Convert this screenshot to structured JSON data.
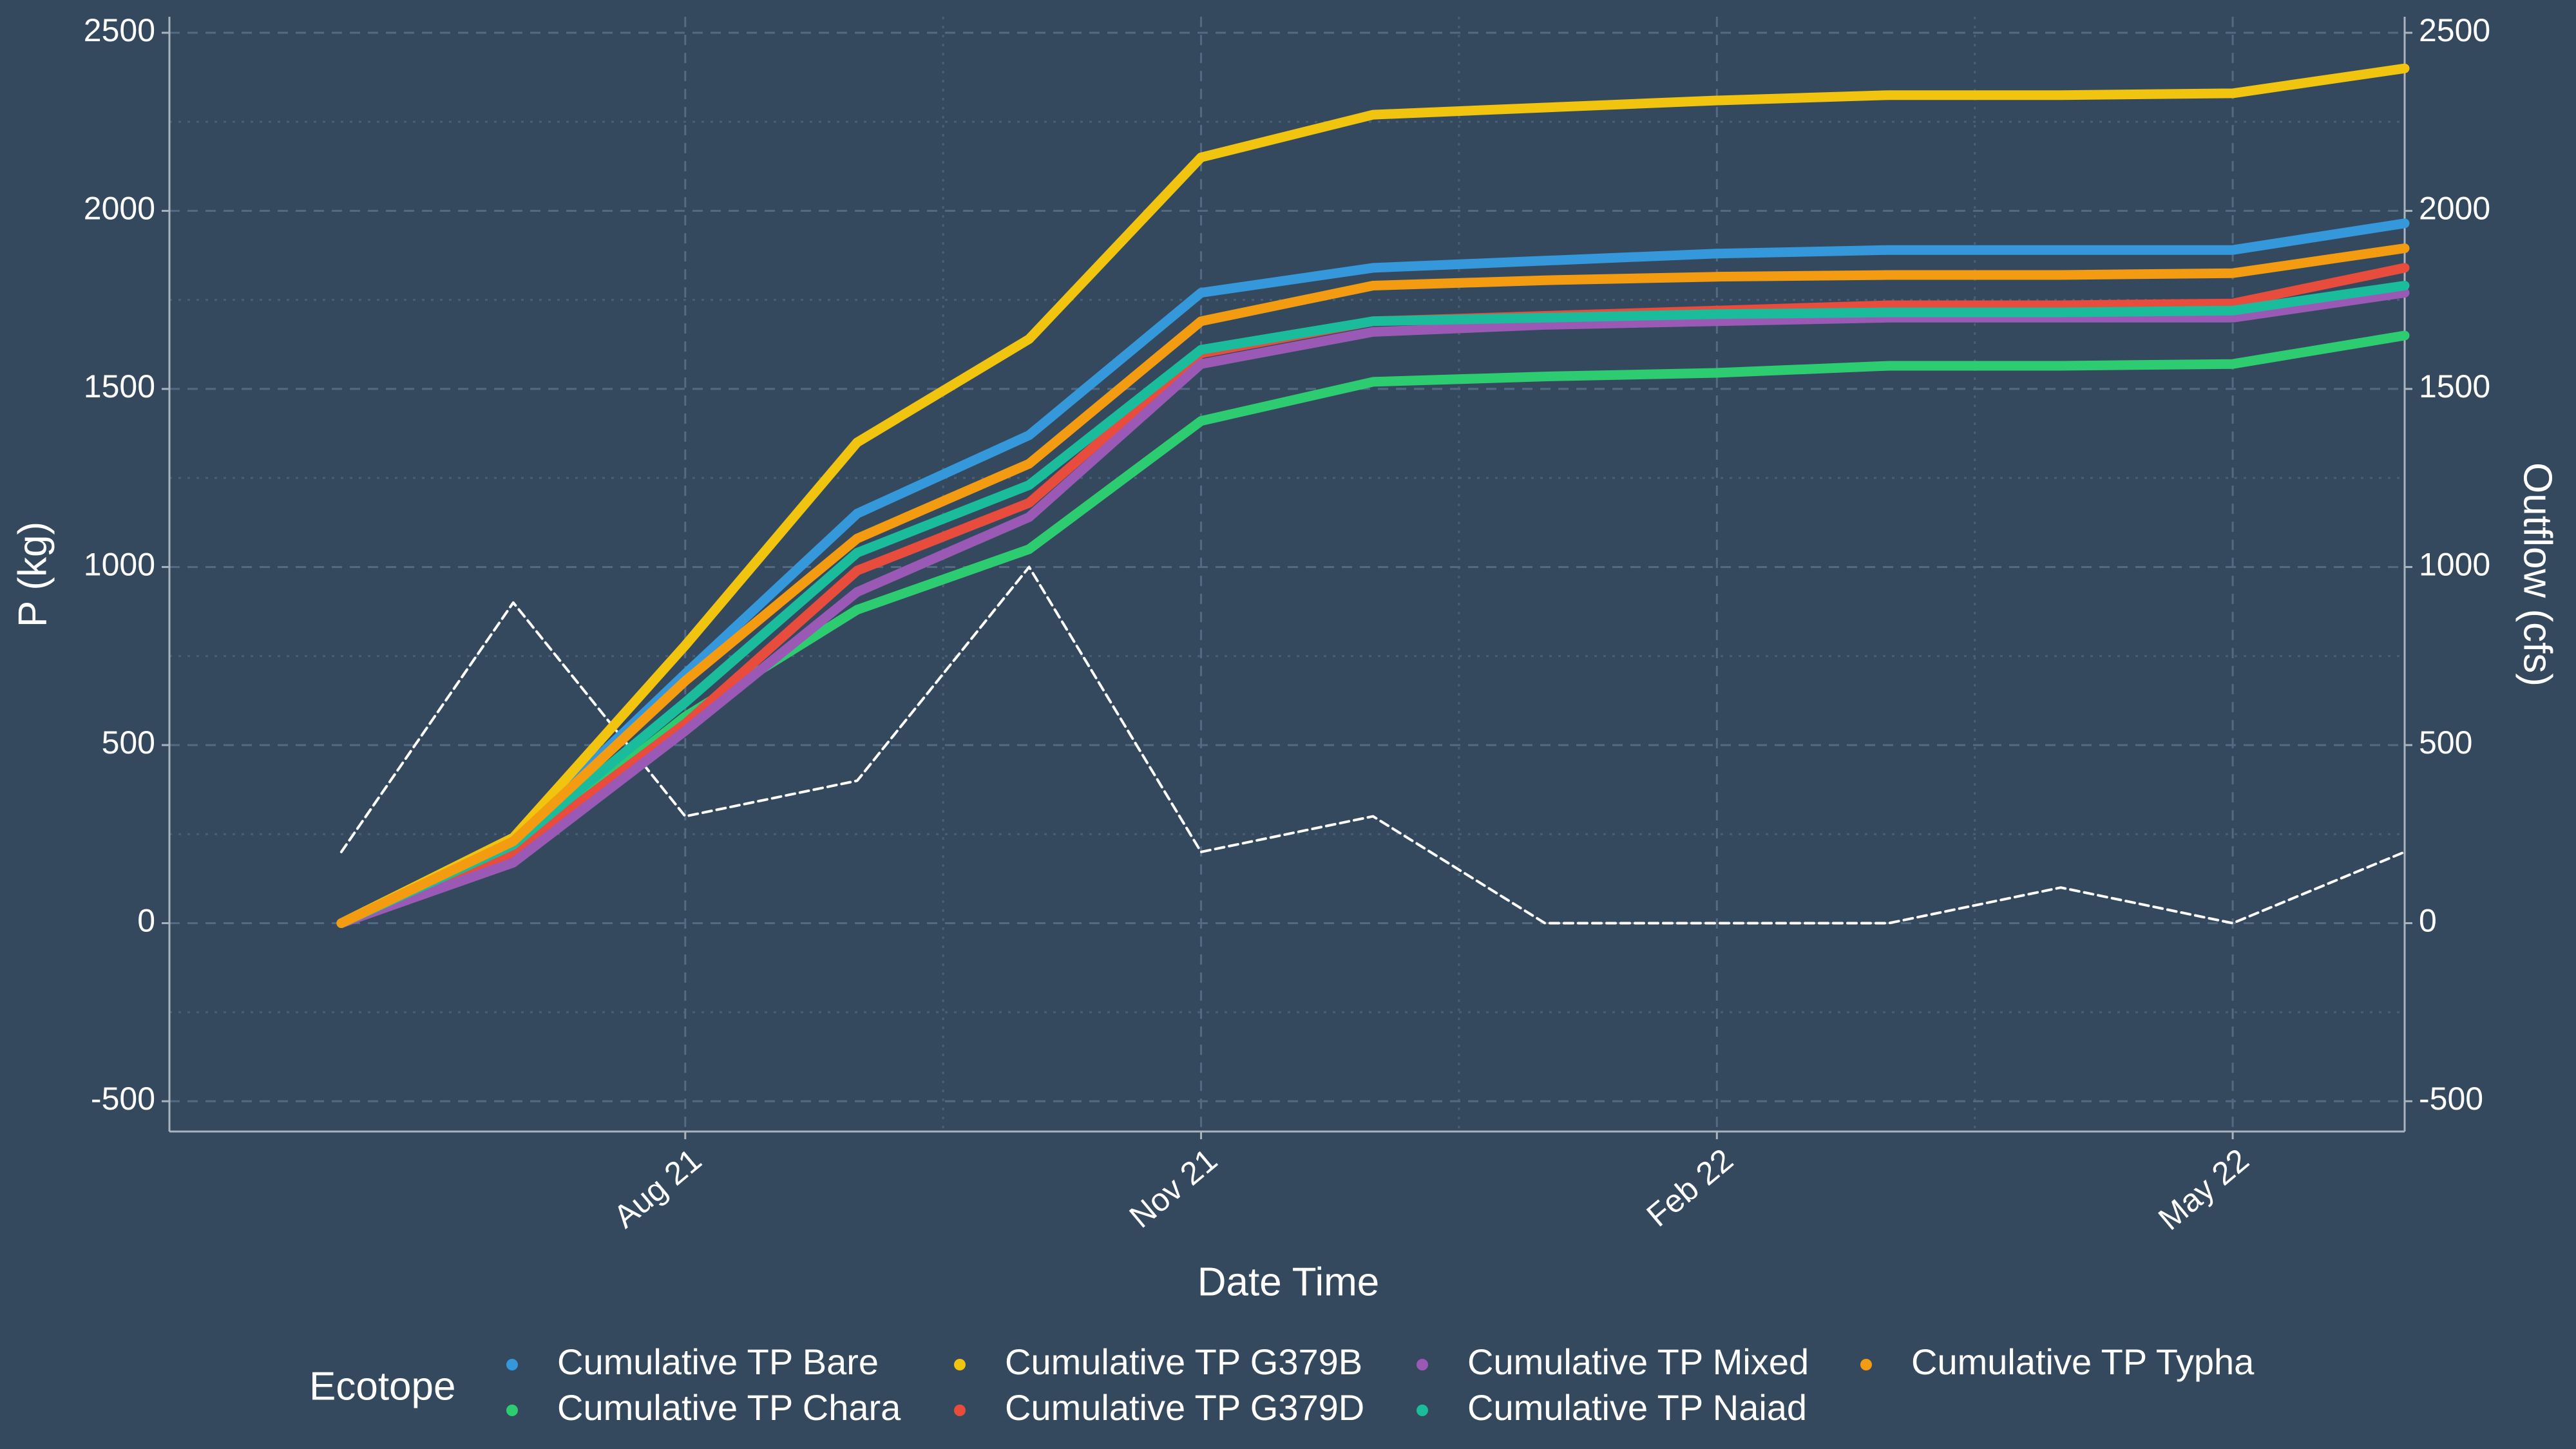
{
  "chart_data": {
    "type": "line",
    "x_label": "Date Time",
    "y_label": "P (kg)",
    "y2_label": "Outflow (cfs)",
    "legend_title": "Ecotope",
    "x": [
      "2021-06",
      "2021-07",
      "2021-08",
      "2021-09",
      "2021-10",
      "2021-11",
      "2021-12",
      "2022-01",
      "2022-02",
      "2022-03",
      "2022-04",
      "2022-05",
      "2022-06"
    ],
    "xlim": [
      "2021-05",
      "2022-06"
    ],
    "xticks": [
      {
        "value": "2021-08",
        "label": "Aug 21"
      },
      {
        "value": "2021-11",
        "label": "Nov 21"
      },
      {
        "value": "2022-02",
        "label": "Feb 22"
      },
      {
        "value": "2022-05",
        "label": "May 22"
      }
    ],
    "ylim": [
      -585,
      2545
    ],
    "yticks": [
      -500,
      0,
      500,
      1000,
      1500,
      2000,
      2500
    ],
    "y2lim": [
      -585,
      2545
    ],
    "y2ticks": [
      -500,
      0,
      500,
      1000,
      1500,
      2000,
      2500
    ],
    "grid": true,
    "legend": "bottom",
    "series": [
      {
        "name": "Outflow",
        "color": "#ffffff",
        "axis": "y2",
        "dashed": true,
        "values": [
          200,
          900,
          300,
          400,
          1000,
          200,
          300,
          0,
          0,
          0,
          100,
          0,
          200
        ]
      },
      {
        "name": "Cumulative TP Bare",
        "color": "#3498db",
        "values": [
          0,
          240,
          700,
          1150,
          1370,
          1770,
          1840,
          1860,
          1880,
          1890,
          1890,
          1890,
          1965
        ]
      },
      {
        "name": "Cumulative TP Chara",
        "color": "#2ecc71",
        "values": [
          0,
          200,
          580,
          880,
          1050,
          1410,
          1520,
          1535,
          1545,
          1565,
          1565,
          1570,
          1650
        ]
      },
      {
        "name": "Cumulative TP G379B",
        "color": "#f1c40f",
        "values": [
          0,
          240,
          780,
          1350,
          1640,
          2150,
          2270,
          2290,
          2310,
          2325,
          2325,
          2330,
          2400
        ]
      },
      {
        "name": "Cumulative TP G379D",
        "color": "#e74c3c",
        "values": [
          0,
          200,
          560,
          990,
          1180,
          1600,
          1690,
          1705,
          1720,
          1735,
          1735,
          1740,
          1840
        ]
      },
      {
        "name": "Cumulative TP Mixed",
        "color": "#9b59b6",
        "values": [
          0,
          170,
          540,
          930,
          1140,
          1570,
          1660,
          1680,
          1690,
          1700,
          1700,
          1700,
          1770
        ]
      },
      {
        "name": "Cumulative TP Naiad",
        "color": "#1abc9c",
        "values": [
          0,
          220,
          620,
          1040,
          1230,
          1610,
          1690,
          1700,
          1710,
          1715,
          1715,
          1720,
          1790
        ]
      },
      {
        "name": "Cumulative TP Typha",
        "color": "#f39c12",
        "values": [
          0,
          230,
          680,
          1080,
          1290,
          1690,
          1790,
          1805,
          1815,
          1820,
          1820,
          1825,
          1895
        ]
      }
    ]
  }
}
